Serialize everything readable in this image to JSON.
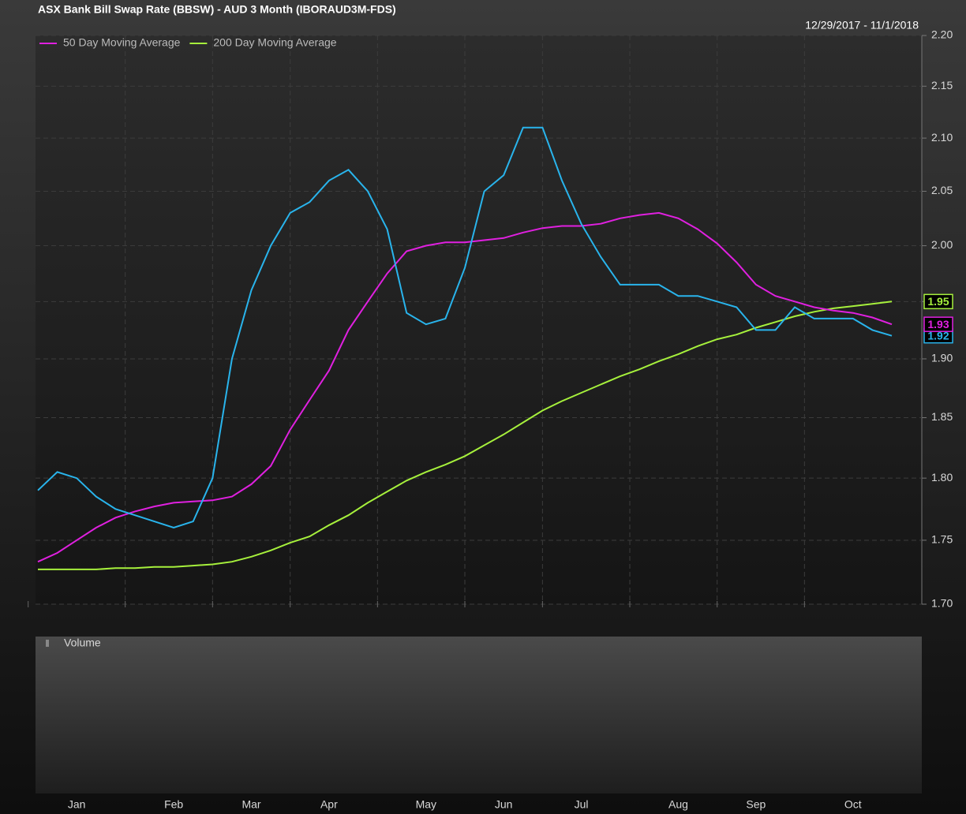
{
  "chart_data": {
    "type": "line",
    "title": "ASX Bank Bill Swap Rate (BBSW) - AUD 3 Month (IBORAUD3M-FDS)",
    "date_range": "12/29/2017 - 11/1/2018",
    "volume_label": "Volume",
    "categories": [
      null,
      null,
      "Jan",
      null,
      null,
      null,
      null,
      "Feb",
      null,
      null,
      null,
      "Mar",
      null,
      null,
      null,
      "Apr",
      null,
      null,
      null,
      null,
      "May",
      null,
      null,
      null,
      "Jun",
      null,
      null,
      null,
      "Jul",
      null,
      null,
      null,
      null,
      "Aug",
      null,
      null,
      null,
      "Sep",
      null,
      null,
      null,
      null,
      "Oct",
      null,
      null
    ],
    "series": [
      {
        "color": "#29b4ec",
        "values": [
          1.79,
          1.805,
          1.8,
          1.785,
          1.775,
          1.77,
          1.765,
          1.76,
          1.765,
          1.8,
          1.9,
          1.96,
          2.0,
          2.03,
          2.04,
          2.06,
          2.07,
          2.05,
          2.015,
          1.94,
          1.93,
          1.935,
          1.98,
          2.05,
          2.065,
          2.11,
          2.11,
          2.06,
          2.02,
          1.99,
          1.965,
          1.965,
          1.965,
          1.955,
          1.955,
          1.95,
          1.945,
          1.925,
          1.925,
          1.945,
          1.935,
          1.935,
          1.935,
          1.925,
          1.92
        ]
      },
      {
        "name": "50 Day Moving Average",
        "color": "#e020e0",
        "values": [
          1.733,
          1.74,
          1.75,
          1.76,
          1.768,
          1.773,
          1.777,
          1.78,
          1.781,
          1.782,
          1.785,
          1.795,
          1.81,
          1.84,
          1.865,
          1.89,
          1.925,
          1.95,
          1.975,
          1.995,
          2.0,
          2.003,
          2.003,
          2.005,
          2.007,
          2.012,
          2.016,
          2.018,
          2.018,
          2.02,
          2.025,
          2.028,
          2.03,
          2.025,
          2.015,
          2.002,
          1.985,
          1.965,
          1.955,
          1.95,
          1.945,
          1.942,
          1.94,
          1.936,
          1.93
        ]
      },
      {
        "name": "200 Day Moving Average",
        "color": "#a6f03c",
        "values": [
          1.727,
          1.727,
          1.727,
          1.727,
          1.728,
          1.728,
          1.729,
          1.729,
          1.73,
          1.731,
          1.733,
          1.737,
          1.742,
          1.748,
          1.753,
          1.762,
          1.77,
          1.78,
          1.789,
          1.798,
          1.805,
          1.811,
          1.818,
          1.827,
          1.836,
          1.846,
          1.856,
          1.864,
          1.871,
          1.878,
          1.885,
          1.891,
          1.898,
          1.904,
          1.911,
          1.917,
          1.921,
          1.927,
          1.932,
          1.937,
          1.941,
          1.944,
          1.946,
          1.948,
          1.95
        ]
      }
    ],
    "ylim": [
      1.7,
      2.2
    ],
    "yscale": "log",
    "yticks": [
      {
        "value": 1.7,
        "label": "1.70"
      },
      1.75,
      {
        "value": 1.8,
        "label": "1.80"
      },
      1.85,
      {
        "value": 1.9,
        "label": "1.90"
      },
      1.95,
      {
        "value": 2.0,
        "label": "2.00"
      },
      2.05,
      {
        "value": 2.1,
        "label": "2.10"
      },
      2.15,
      {
        "value": 2.2,
        "label": "2.20"
      }
    ],
    "grid": true,
    "legend": "top-left"
  }
}
